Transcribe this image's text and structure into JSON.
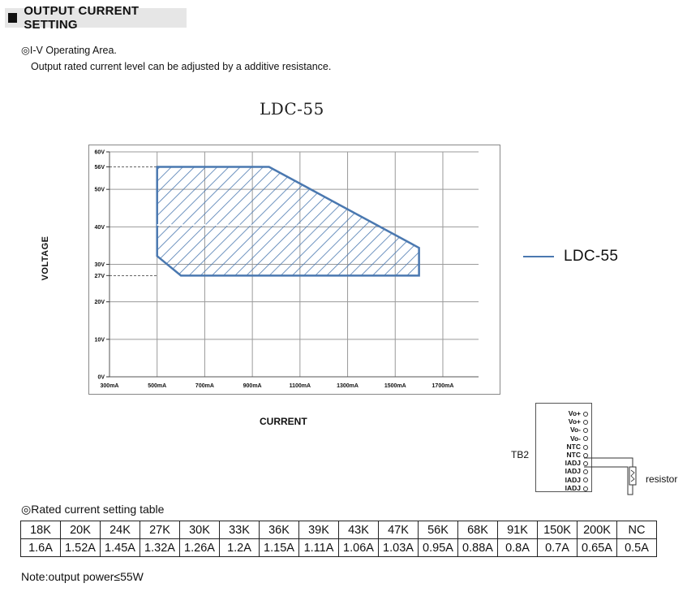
{
  "section": {
    "title": "OUTPUT CURRENT SETTING"
  },
  "iv": {
    "title": "◎I-V Operating Area.",
    "description": "Output rated current level can be adjusted by a additive resistance."
  },
  "chart_data": {
    "type": "area",
    "title": "LDC-55",
    "xlabel": "CURRENT",
    "ylabel": "VOLTAGE",
    "x_ticks": [
      {
        "value": 300,
        "label": "300mA"
      },
      {
        "value": 500,
        "label": "500mA"
      },
      {
        "value": 700,
        "label": "700mA"
      },
      {
        "value": 900,
        "label": "900mA"
      },
      {
        "value": 1100,
        "label": "1100mA"
      },
      {
        "value": 1300,
        "label": "1300mA"
      },
      {
        "value": 1500,
        "label": "1500mA"
      },
      {
        "value": 1700,
        "label": "1700mA"
      }
    ],
    "y_ticks": [
      {
        "value": 0,
        "label": "0V"
      },
      {
        "value": 10,
        "label": "10V"
      },
      {
        "value": 20,
        "label": "20V"
      },
      {
        "value": 27,
        "label": "27V"
      },
      {
        "value": 30,
        "label": "30V"
      },
      {
        "value": 40,
        "label": "40V"
      },
      {
        "value": 50,
        "label": "50V"
      },
      {
        "value": 56,
        "label": "56V"
      },
      {
        "value": 60,
        "label": "60V"
      }
    ],
    "xlim": [
      300,
      1850
    ],
    "ylim": [
      0,
      60
    ],
    "grid": true,
    "series": [
      {
        "name": "LDC-55",
        "polygon": [
          [
            500,
            56
          ],
          [
            970,
            56
          ],
          [
            1600,
            34.4
          ],
          [
            1600,
            27
          ],
          [
            600,
            27
          ],
          [
            500,
            32.2
          ]
        ]
      }
    ],
    "reference_lines": [
      {
        "y": 56,
        "style": "dashed"
      },
      {
        "y": 27,
        "style": "dashed"
      },
      {
        "y": 40.5,
        "style": "dashed",
        "from_x": 500,
        "to_x": 1220
      }
    ],
    "legend": {
      "label": "LDC-55",
      "position": "right"
    },
    "colors": {
      "series": "#4a78b0",
      "grid": "#9a9a9a"
    }
  },
  "tb2": {
    "label": "TB2",
    "pins": [
      "Vo+",
      "Vo+",
      "Vo-",
      "Vo-",
      "NTC",
      "NTC",
      "IADJ",
      "IADJ",
      "IADJ",
      "IADJ"
    ],
    "resistor_label": "resistor"
  },
  "rating_table": {
    "title": "◎Rated current setting table",
    "resistances": [
      "18K",
      "20K",
      "24K",
      "27K",
      "30K",
      "33K",
      "36K",
      "39K",
      "43K",
      "47K",
      "56K",
      "68K",
      "91K",
      "150K",
      "200K",
      "NC"
    ],
    "currents": [
      "1.6A",
      "1.52A",
      "1.45A",
      "1.32A",
      "1.26A",
      "1.2A",
      "1.15A",
      "1.11A",
      "1.06A",
      "1.03A",
      "0.95A",
      "0.88A",
      "0.8A",
      "0.7A",
      "0.65A",
      "0.5A"
    ]
  },
  "note": "Note:output power≤55W"
}
